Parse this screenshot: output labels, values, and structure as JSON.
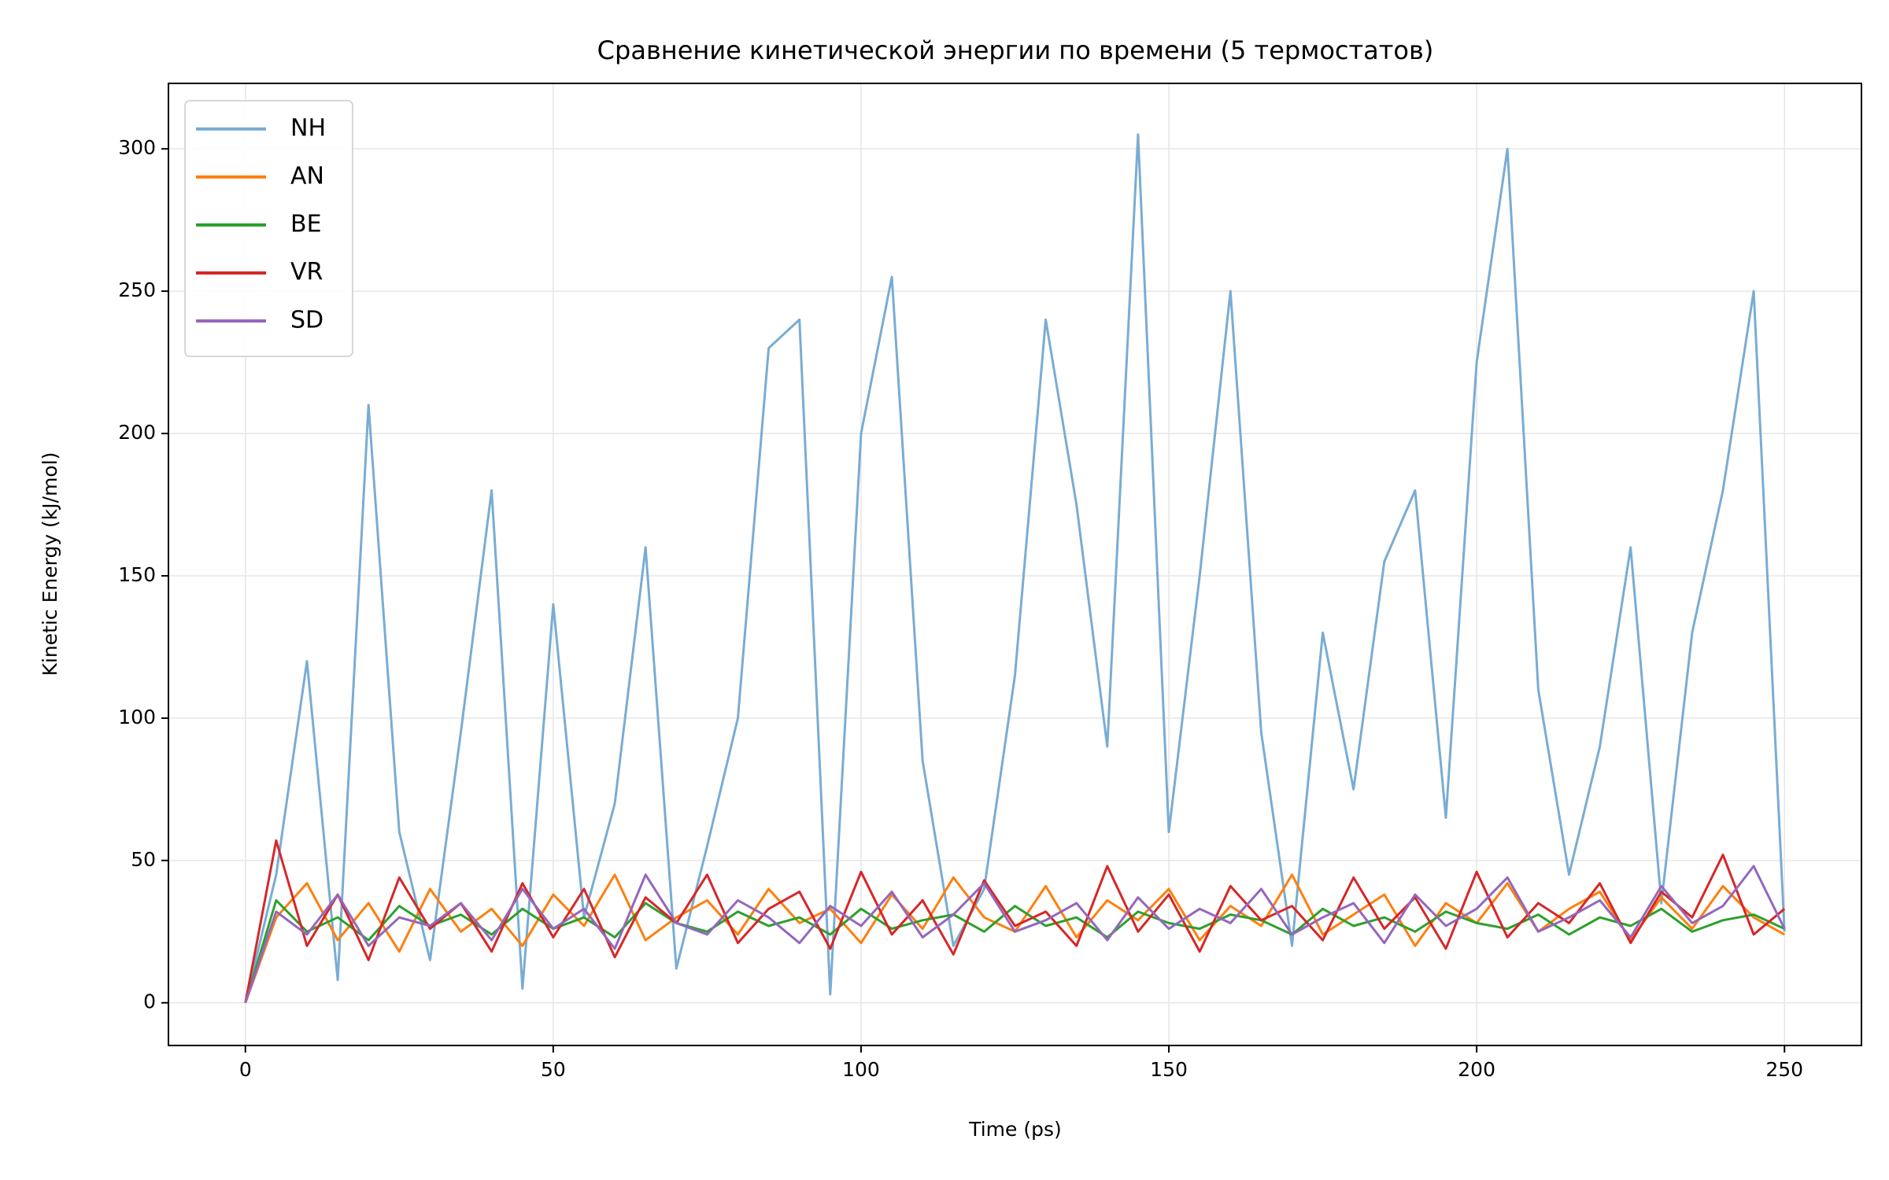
{
  "chart_data": {
    "type": "line",
    "title": "Сравнение кинетической энергии по времени (5 термостатов)",
    "x_label": "Time (ps)",
    "y_label": "Kinetic Energy (kJ/mol)",
    "x": [
      0,
      5,
      10,
      15,
      20,
      25,
      30,
      35,
      40,
      45,
      50,
      55,
      60,
      65,
      70,
      75,
      80,
      85,
      90,
      95,
      100,
      105,
      110,
      115,
      120,
      125,
      130,
      135,
      140,
      145,
      150,
      155,
      160,
      165,
      170,
      175,
      180,
      185,
      190,
      195,
      200,
      205,
      210,
      215,
      220,
      225,
      230,
      235,
      240,
      245,
      250
    ],
    "series": [
      {
        "name": "NH",
        "color": "#79acd3",
        "values": [
          0,
          45,
          120,
          8,
          210,
          60,
          15,
          95,
          180,
          5,
          140,
          30,
          70,
          160,
          12,
          55,
          100,
          230,
          240,
          3,
          200,
          255,
          85,
          20,
          40,
          115,
          240,
          175,
          90,
          305,
          60,
          150,
          250,
          95,
          20,
          130,
          75,
          155,
          180,
          65,
          225,
          300,
          110,
          45,
          90,
          160,
          35,
          130,
          180,
          250,
          25
        ]
      },
      {
        "name": "AN",
        "color": "#ff7f0e",
        "values": [
          0,
          30,
          42,
          22,
          35,
          18,
          40,
          25,
          33,
          20,
          38,
          27,
          45,
          22,
          30,
          36,
          24,
          40,
          28,
          33,
          21,
          38,
          26,
          44,
          30,
          25,
          41,
          23,
          36,
          29,
          40,
          22,
          34,
          27,
          45,
          24,
          31,
          38,
          20,
          35,
          28,
          42,
          25,
          33,
          39,
          22,
          37,
          26,
          41,
          30,
          24
        ]
      },
      {
        "name": "BE",
        "color": "#2ca02c",
        "values": [
          0,
          36,
          25,
          30,
          22,
          34,
          27,
          31,
          24,
          33,
          26,
          30,
          23,
          35,
          28,
          25,
          32,
          27,
          30,
          24,
          33,
          26,
          29,
          31,
          25,
          34,
          27,
          30,
          23,
          32,
          28,
          26,
          31,
          29,
          24,
          33,
          27,
          30,
          25,
          32,
          28,
          26,
          31,
          24,
          30,
          27,
          33,
          25,
          29,
          31,
          26
        ]
      },
      {
        "name": "VR",
        "color": "#d62728",
        "values": [
          0,
          57,
          20,
          38,
          15,
          44,
          26,
          35,
          18,
          42,
          23,
          40,
          16,
          37,
          28,
          45,
          21,
          33,
          39,
          19,
          46,
          24,
          36,
          17,
          43,
          27,
          32,
          20,
          48,
          25,
          38,
          18,
          41,
          29,
          34,
          22,
          44,
          26,
          37,
          19,
          46,
          23,
          35,
          28,
          42,
          21,
          39,
          30,
          52,
          24,
          33
        ]
      },
      {
        "name": "SD",
        "color": "#9467bd",
        "values": [
          0,
          32,
          24,
          38,
          20,
          30,
          27,
          35,
          22,
          40,
          26,
          33,
          19,
          45,
          28,
          24,
          36,
          30,
          21,
          34,
          27,
          39,
          23,
          31,
          42,
          25,
          29,
          35,
          22,
          37,
          26,
          33,
          28,
          40,
          24,
          30,
          35,
          21,
          38,
          27,
          33,
          44,
          25,
          30,
          36,
          23,
          41,
          28,
          34,
          48,
          26
        ]
      }
    ],
    "xlim": [
      -12.5,
      262.5
    ],
    "xticks": [
      0,
      50,
      100,
      150,
      200,
      250
    ],
    "ylim": [
      -15,
      323
    ],
    "yticks": [
      0,
      50,
      100,
      150,
      200,
      250,
      300
    ],
    "grid": true,
    "legend": "upper-left"
  }
}
